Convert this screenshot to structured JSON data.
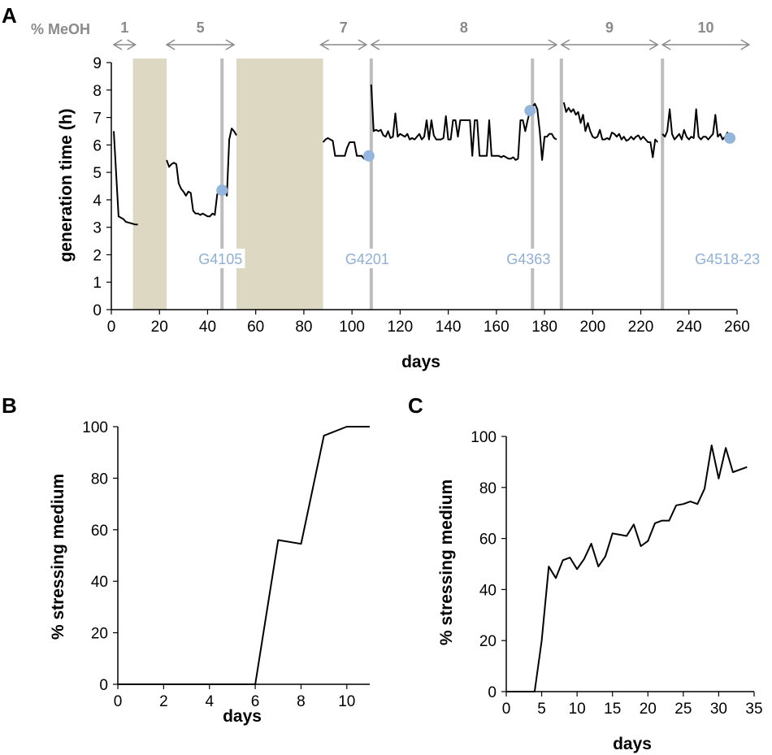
{
  "colors": {
    "line": "#000000",
    "stress_band": "#dcd8c2",
    "transfer_line": "#bdbdbd",
    "sample_point": "#94b6dc",
    "sample_label": "#8fb0d6",
    "meoh_label": "#8a8a8a"
  },
  "chart_data": [
    {
      "id": "A",
      "panel_label": "A",
      "type": "line",
      "xlabel": "days",
      "ylabel": "generation time (h)",
      "xlim": [
        0,
        260
      ],
      "ylim": [
        0,
        9
      ],
      "xticks": [
        0,
        20,
        40,
        60,
        80,
        100,
        120,
        140,
        160,
        180,
        200,
        220,
        240,
        260
      ],
      "yticks": [
        0,
        1,
        2,
        3,
        4,
        5,
        6,
        7,
        8,
        9
      ],
      "meoh_header": "% MeOH",
      "meoh_phases": [
        {
          "label": "1",
          "from": 1,
          "to": 10
        },
        {
          "label": "5",
          "from": 23,
          "to": 51
        },
        {
          "label": "7",
          "from": 87,
          "to": 106
        },
        {
          "label": "8",
          "from": 108,
          "to": 185
        },
        {
          "label": "9",
          "from": 187,
          "to": 227
        },
        {
          "label": "10",
          "from": 229,
          "to": 265
        }
      ],
      "shaded_periods": [
        [
          9,
          23
        ],
        [
          52,
          88
        ]
      ],
      "transfer_lines": [
        46,
        108,
        175,
        187,
        229
      ],
      "samples": [
        {
          "label": "G4105",
          "x": 46,
          "y": 4.35
        },
        {
          "label": "G4201",
          "x": 107,
          "y": 5.6
        },
        {
          "label": "G4363",
          "x": 174,
          "y": 7.25
        },
        {
          "label": "G4518-23",
          "x": 257,
          "y": 6.25
        }
      ],
      "segments": [
        [
          [
            1,
            6.5
          ],
          [
            3,
            3.4
          ],
          [
            5,
            3.3
          ],
          [
            6,
            3.2
          ],
          [
            8,
            3.15
          ],
          [
            10,
            3.1
          ],
          [
            11,
            3.1
          ]
        ],
        [
          [
            23,
            5.45
          ],
          [
            24,
            5.2
          ],
          [
            25,
            5.3
          ],
          [
            26,
            5.35
          ],
          [
            27,
            5.3
          ],
          [
            28,
            4.6
          ],
          [
            29,
            4.4
          ],
          [
            30,
            4.3
          ],
          [
            31,
            4.15
          ],
          [
            32,
            4.3
          ],
          [
            33,
            4.25
          ],
          [
            34,
            3.6
          ],
          [
            35,
            3.5
          ],
          [
            36,
            3.5
          ],
          [
            37,
            3.45
          ],
          [
            38,
            3.5
          ],
          [
            39,
            3.45
          ],
          [
            40,
            3.4
          ],
          [
            41,
            3.4
          ],
          [
            42,
            3.5
          ],
          [
            43,
            3.45
          ],
          [
            44,
            4.2
          ],
          [
            45,
            4.35
          ],
          [
            46,
            4.3
          ],
          [
            47,
            4.4
          ],
          [
            48,
            4.15
          ],
          [
            49,
            6.2
          ],
          [
            50,
            6.6
          ],
          [
            51,
            6.5
          ],
          [
            52,
            6.35
          ]
        ],
        [
          [
            88,
            6.1
          ],
          [
            89,
            6.2
          ],
          [
            90,
            6.25
          ],
          [
            91,
            6.2
          ],
          [
            92,
            6.15
          ],
          [
            93,
            5.6
          ],
          [
            94,
            5.6
          ],
          [
            95,
            5.6
          ],
          [
            96,
            5.6
          ],
          [
            97,
            5.6
          ],
          [
            98,
            5.9
          ],
          [
            99,
            6.1
          ],
          [
            100,
            6.1
          ],
          [
            101,
            6.1
          ],
          [
            102,
            5.6
          ],
          [
            103,
            5.6
          ],
          [
            104,
            5.6
          ],
          [
            105,
            5.5
          ],
          [
            106,
            5.6
          ]
        ],
        [
          [
            108,
            8.2
          ],
          [
            109,
            6.5
          ],
          [
            110,
            6.55
          ],
          [
            111,
            6.5
          ],
          [
            112,
            6.55
          ],
          [
            113,
            6.35
          ],
          [
            114,
            6.3
          ],
          [
            115,
            6.5
          ],
          [
            116,
            6.25
          ],
          [
            117,
            6.3
          ],
          [
            118,
            7.15
          ],
          [
            119,
            6.3
          ],
          [
            120,
            6.4
          ],
          [
            121,
            6.35
          ],
          [
            122,
            6.3
          ],
          [
            123,
            6.4
          ],
          [
            124,
            6.2
          ],
          [
            125,
            6.25
          ],
          [
            126,
            6.2
          ],
          [
            127,
            6.3
          ],
          [
            128,
            6.4
          ],
          [
            129,
            6.2
          ],
          [
            130,
            6.3
          ],
          [
            131,
            6.9
          ],
          [
            132,
            6.2
          ],
          [
            133,
            6.9
          ],
          [
            134,
            6.35
          ],
          [
            135,
            6.2
          ],
          [
            136,
            6.2
          ],
          [
            137,
            6.2
          ],
          [
            138,
            6.25
          ],
          [
            139,
            7.05
          ],
          [
            140,
            6.2
          ],
          [
            141,
            6.2
          ],
          [
            142,
            6.9
          ],
          [
            143,
            6.9
          ],
          [
            144,
            6.3
          ],
          [
            145,
            6.9
          ],
          [
            146,
            6.9
          ],
          [
            147,
            6.9
          ],
          [
            148,
            6.9
          ],
          [
            149,
            6.9
          ],
          [
            150,
            5.6
          ],
          [
            151,
            6.9
          ],
          [
            152,
            6.9
          ],
          [
            153,
            5.6
          ],
          [
            154,
            5.6
          ],
          [
            155,
            5.6
          ],
          [
            156,
            5.6
          ],
          [
            157,
            6.9
          ],
          [
            158,
            5.6
          ],
          [
            159,
            5.6
          ],
          [
            160,
            5.6
          ],
          [
            161,
            5.6
          ],
          [
            162,
            5.55
          ],
          [
            163,
            5.6
          ],
          [
            164,
            5.55
          ],
          [
            165,
            5.5
          ],
          [
            166,
            5.5
          ],
          [
            167,
            5.55
          ],
          [
            168,
            5.45
          ],
          [
            169,
            5.5
          ],
          [
            170,
            6.9
          ],
          [
            171,
            6.9
          ],
          [
            172,
            6.5
          ],
          [
            173,
            6.9
          ],
          [
            174,
            7.25
          ],
          [
            175,
            7.4
          ],
          [
            176,
            7.5
          ],
          [
            177,
            7.3
          ],
          [
            178,
            6.5
          ],
          [
            179,
            5.45
          ],
          [
            180,
            6.3
          ],
          [
            181,
            6.3
          ],
          [
            182,
            6.4
          ],
          [
            183,
            6.4
          ],
          [
            184,
            6.25
          ],
          [
            185,
            6.2
          ]
        ],
        [
          [
            188,
            7.55
          ],
          [
            189,
            7.2
          ],
          [
            190,
            7.35
          ],
          [
            191,
            7.2
          ],
          [
            192,
            7.3
          ],
          [
            193,
            7.1
          ],
          [
            194,
            7.2
          ],
          [
            195,
            6.8
          ],
          [
            196,
            7.1
          ],
          [
            197,
            6.5
          ],
          [
            198,
            6.8
          ],
          [
            199,
            6.5
          ],
          [
            200,
            6.3
          ],
          [
            201,
            6.25
          ],
          [
            202,
            6.3
          ],
          [
            203,
            6.55
          ],
          [
            204,
            6.2
          ],
          [
            205,
            6.2
          ],
          [
            206,
            6.25
          ],
          [
            207,
            6.2
          ],
          [
            208,
            6.45
          ],
          [
            209,
            6.4
          ],
          [
            210,
            6.3
          ],
          [
            211,
            6.4
          ],
          [
            212,
            6.2
          ],
          [
            213,
            6.3
          ],
          [
            214,
            6.15
          ],
          [
            215,
            6.2
          ],
          [
            216,
            6.3
          ],
          [
            217,
            6.2
          ],
          [
            218,
            6.3
          ],
          [
            219,
            6.35
          ],
          [
            220,
            6.2
          ],
          [
            221,
            6.3
          ],
          [
            222,
            6.2
          ],
          [
            223,
            6.1
          ],
          [
            224,
            6.1
          ],
          [
            225,
            5.55
          ],
          [
            226,
            6.2
          ],
          [
            227,
            6.1
          ]
        ],
        [
          [
            229,
            6.4
          ],
          [
            230,
            6.3
          ],
          [
            231,
            6.5
          ],
          [
            232,
            7.3
          ],
          [
            233,
            6.4
          ],
          [
            234,
            6.2
          ],
          [
            235,
            6.3
          ],
          [
            236,
            6.4
          ],
          [
            237,
            6.2
          ],
          [
            238,
            6.55
          ],
          [
            239,
            6.3
          ],
          [
            240,
            6.2
          ],
          [
            241,
            6.3
          ],
          [
            242,
            6.25
          ],
          [
            243,
            7.3
          ],
          [
            244,
            6.3
          ],
          [
            245,
            6.2
          ],
          [
            246,
            6.3
          ],
          [
            247,
            6.3
          ],
          [
            248,
            6.2
          ],
          [
            249,
            6.3
          ],
          [
            250,
            6.4
          ],
          [
            251,
            7.1
          ],
          [
            252,
            6.3
          ],
          [
            253,
            6.4
          ],
          [
            254,
            6.2
          ],
          [
            255,
            6.3
          ],
          [
            256,
            6.45
          ],
          [
            257,
            6.3
          ],
          [
            258,
            6.4
          ]
        ]
      ]
    },
    {
      "id": "B",
      "panel_label": "B",
      "type": "line",
      "xlabel": "days",
      "ylabel": "% stressing medium",
      "xlim": [
        0,
        11
      ],
      "ylim": [
        0,
        100
      ],
      "xticks": [
        0,
        2,
        4,
        6,
        8,
        10
      ],
      "yticks": [
        0,
        20,
        40,
        60,
        80,
        100
      ],
      "x": [
        0,
        6,
        7,
        8,
        9,
        10,
        11
      ],
      "y": [
        0,
        0,
        56,
        54.5,
        96.5,
        100,
        100
      ]
    },
    {
      "id": "C",
      "panel_label": "C",
      "type": "line",
      "xlabel": "days",
      "ylabel": "% stressing medium",
      "xlim": [
        0,
        35
      ],
      "ylim": [
        0,
        100
      ],
      "xticks": [
        0,
        5,
        10,
        15,
        20,
        25,
        30,
        35
      ],
      "yticks": [
        0,
        20,
        40,
        60,
        80,
        100
      ],
      "x": [
        0,
        4,
        5,
        6,
        7,
        8,
        9,
        10,
        11,
        12,
        13,
        14,
        15,
        16,
        17,
        18,
        19,
        20,
        21,
        22,
        23,
        24,
        25,
        26,
        27,
        28,
        29,
        30,
        31,
        32,
        33,
        34
      ],
      "y": [
        0,
        0,
        20,
        49,
        44.5,
        51.5,
        52.5,
        48,
        52,
        58,
        49,
        53,
        62,
        61.5,
        61,
        65.5,
        57,
        59,
        66,
        67,
        67,
        73,
        73.5,
        74.5,
        73.5,
        79.5,
        96.5,
        83.5,
        95.5,
        86,
        87,
        88
      ]
    }
  ]
}
